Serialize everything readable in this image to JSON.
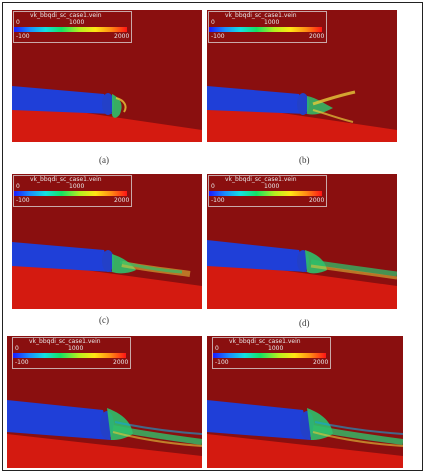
{
  "panels": [
    {
      "legend_title": "vk_bbqdi_sc_case1.vein",
      "tick_min": "-100",
      "tick_low": "0",
      "tick_mid": "1000",
      "tick_max": "2000",
      "caption": "(a)"
    },
    {
      "legend_title": "vk_bbqdi_sc_case1.vein",
      "tick_min": "-100",
      "tick_low": "0",
      "tick_mid": "1000",
      "tick_max": "2000",
      "caption": "(b)"
    },
    {
      "legend_title": "vk_bbqdi_sc_case1.vein",
      "tick_min": "-100",
      "tick_low": "0",
      "tick_mid": "1000",
      "tick_max": "2000",
      "caption": "(c)"
    },
    {
      "legend_title": "vk_bbqdi_sc_case1.vein",
      "tick_min": "-100",
      "tick_low": "0",
      "tick_mid": "1000",
      "tick_max": "2000",
      "caption": "(d)"
    },
    {
      "legend_title": "vk_bbqdi_sc_case1.vein",
      "tick_min": "-100",
      "tick_low": "0",
      "tick_mid": "1000",
      "tick_max": "2000",
      "caption": ""
    },
    {
      "legend_title": "vk_bbqdi_sc_case1.vein",
      "tick_min": "-100",
      "tick_low": "0",
      "tick_mid": "1000",
      "tick_max": "2000",
      "caption": ""
    }
  ],
  "colors": {
    "background_dark_red": "#8a0f0f",
    "ground_red": "#d41a10",
    "cylinder_blue": "#1f3fd8",
    "plume_green": "#2fbf6a",
    "plume_yellow": "#e6c93a"
  }
}
